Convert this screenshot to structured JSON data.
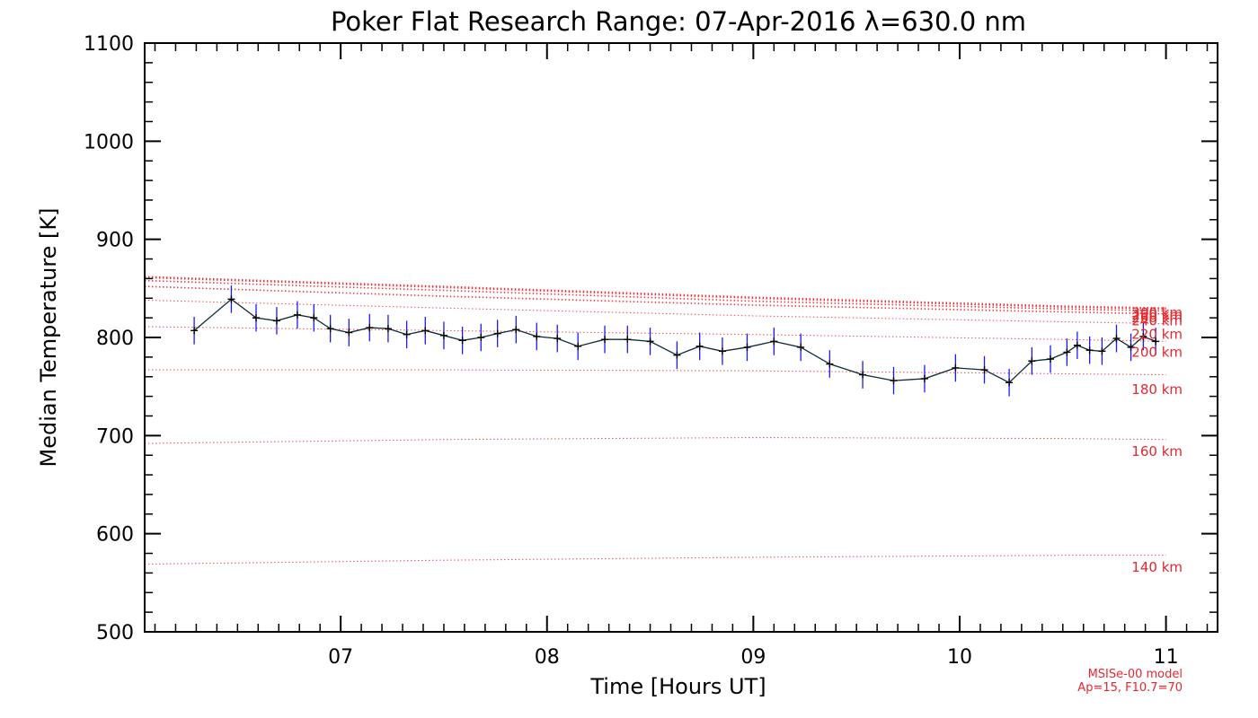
{
  "chart_data": {
    "type": "line",
    "title": "Poker Flat Research Range: 07-Apr-2016 λ=630.0 nm",
    "xlabel": "Time [Hours UT]",
    "ylabel": "Median Temperature [K]",
    "xlim": [
      6.05,
      11.25
    ],
    "ylim": [
      500,
      1100
    ],
    "x_ticks": [
      7,
      8,
      9,
      10,
      11
    ],
    "x_tick_labels": [
      "07",
      "08",
      "09",
      "10",
      "11"
    ],
    "y_ticks": [
      500,
      600,
      700,
      800,
      900,
      1000,
      1100
    ],
    "y_tick_labels": [
      "500",
      "600",
      "700",
      "800",
      "900",
      "1000",
      "1100"
    ],
    "colors": {
      "data": "#0b2a3a",
      "errorbar": "#1a1aff",
      "model": "#e8262e"
    },
    "series": [
      {
        "name": "Median Temperature",
        "x": [
          6.29,
          6.47,
          6.59,
          6.69,
          6.79,
          6.87,
          6.95,
          7.04,
          7.14,
          7.23,
          7.32,
          7.41,
          7.5,
          7.59,
          7.68,
          7.76,
          7.85,
          7.95,
          8.05,
          8.15,
          8.28,
          8.39,
          8.5,
          8.63,
          8.74,
          8.85,
          8.97,
          9.1,
          9.23,
          9.37,
          9.53,
          9.68,
          9.83,
          9.98,
          10.12,
          10.24,
          10.35,
          10.44,
          10.52,
          10.57,
          10.63,
          10.69,
          10.76,
          10.83,
          10.89,
          10.95
        ],
        "values": [
          807,
          839,
          820,
          817,
          823,
          820,
          809,
          805,
          810,
          809,
          803,
          807,
          802,
          797,
          800,
          804,
          808,
          801,
          799,
          791,
          798,
          798,
          796,
          782,
          791,
          786,
          790,
          796,
          790,
          773,
          762,
          756,
          758,
          769,
          767,
          754,
          776,
          778,
          785,
          792,
          787,
          786,
          799,
          790,
          801,
          796
        ],
        "errors": [
          14,
          14,
          14,
          14,
          14,
          14,
          14,
          14,
          14,
          14,
          14,
          14,
          14,
          14,
          14,
          14,
          14,
          14,
          14,
          14,
          14,
          14,
          14,
          14,
          14,
          14,
          14,
          14,
          14,
          14,
          14,
          14,
          14,
          14,
          14,
          14,
          14,
          14,
          14,
          14,
          14,
          14,
          14,
          14,
          14,
          14
        ]
      }
    ],
    "model_curves": [
      {
        "label": "140 km",
        "x": [
          6.05,
          7.5,
          9.0,
          10.5,
          11.0
        ],
        "values": [
          569,
          573,
          576,
          578,
          578
        ]
      },
      {
        "label": "160 km",
        "x": [
          6.05,
          7.5,
          9.0,
          10.5,
          11.0
        ],
        "values": [
          692,
          696,
          698,
          697,
          696
        ]
      },
      {
        "label": "180 km",
        "x": [
          6.05,
          7.5,
          9.0,
          10.5,
          11.0
        ],
        "values": [
          767,
          767,
          766,
          763,
          762
        ]
      },
      {
        "label": "200 km",
        "x": [
          6.05,
          7.5,
          9.0,
          10.5,
          11.0
        ],
        "values": [
          811,
          807,
          803,
          798,
          796
        ]
      },
      {
        "label": "220 km",
        "x": [
          6.05,
          7.5,
          9.0,
          10.5,
          11.0
        ],
        "values": [
          838,
          830,
          822,
          816,
          814
        ]
      },
      {
        "label": "240 km",
        "x": [
          6.05,
          7.5,
          9.0,
          10.5,
          11.0
        ],
        "values": [
          852,
          842,
          833,
          826,
          824
        ]
      },
      {
        "label": "260 km",
        "x": [
          6.05,
          7.5,
          9.0,
          10.5,
          11.0
        ],
        "values": [
          858,
          848,
          837,
          829,
          827
        ]
      },
      {
        "label": "280 km",
        "x": [
          6.05,
          7.5,
          9.0,
          10.5,
          11.0
        ],
        "values": [
          861,
          851,
          840,
          831,
          829
        ]
      },
      {
        "label": "300 km",
        "x": [
          6.05,
          7.5,
          9.0,
          10.5,
          11.0
        ],
        "values": [
          862,
          852,
          841,
          832,
          830
        ]
      }
    ],
    "model_label_values": [
      566,
      684,
      747,
      785,
      803,
      817,
      820,
      823,
      825
    ],
    "model_name": "MSISe-00 model",
    "model_params": "Ap=15, F10.7=70"
  }
}
